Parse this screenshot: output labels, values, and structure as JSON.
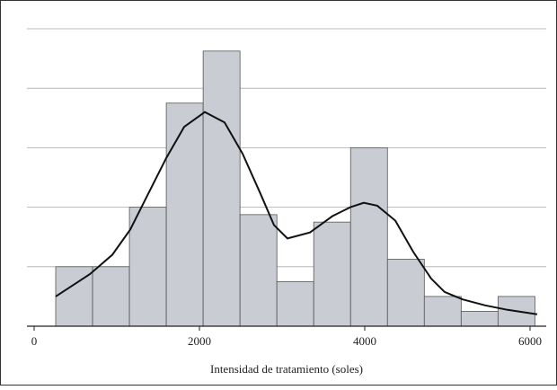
{
  "chart_data": {
    "type": "histogram",
    "x_label": "Intensidad de tratamiento (soles)",
    "bins": [
      261,
      707,
      1153,
      1599,
      2045,
      2491,
      2937,
      3383,
      3829,
      4275,
      4721,
      5167,
      5613,
      6059
    ],
    "counts": [
      8,
      8,
      16,
      30,
      37,
      15,
      6,
      14,
      24,
      9,
      4,
      2,
      4
    ],
    "color": "#c9ccd3",
    "curve": {
      "color": "#111111",
      "x": [
        261,
        674,
        946,
        1163,
        1380,
        1598,
        1815,
        2065,
        2304,
        2522,
        2739,
        2902,
        3065,
        3337,
        3609,
        3826,
        3989,
        4152,
        4370,
        4587,
        4804,
        4967,
        5185,
        5457,
        5728,
        6087
      ],
      "values": [
        4.0,
        7.0,
        9.6,
        13.0,
        17.8,
        22.6,
        26.8,
        28.8,
        27.4,
        23.2,
        17.8,
        13.6,
        11.8,
        12.6,
        14.8,
        16.0,
        16.6,
        16.2,
        14.2,
        10.0,
        6.4,
        4.6,
        3.6,
        2.8,
        2.2,
        1.6
      ]
    },
    "xlim": [
      -87,
      6196
    ],
    "xticks": [
      0,
      2000,
      4000,
      6000
    ],
    "ylim": [
      0,
      40
    ],
    "yticks": [
      0,
      8,
      16,
      24,
      32,
      40
    ],
    "grid": true
  }
}
